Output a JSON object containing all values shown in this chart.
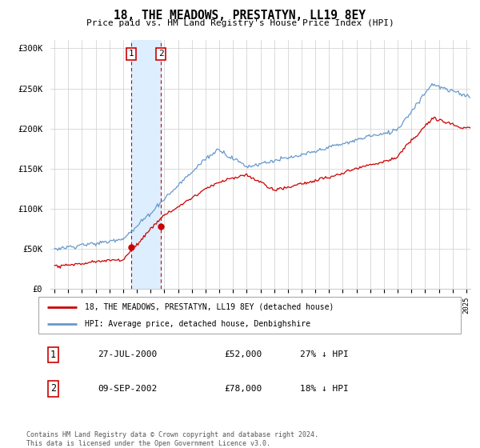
{
  "title": "18, THE MEADOWS, PRESTATYN, LL19 8EY",
  "subtitle": "Price paid vs. HM Land Registry's House Price Index (HPI)",
  "legend_line1": "18, THE MEADOWS, PRESTATYN, LL19 8EY (detached house)",
  "legend_line2": "HPI: Average price, detached house, Denbighshire",
  "transaction1_label": "1",
  "transaction1_date": "27-JUL-2000",
  "transaction1_price": "£52,000",
  "transaction1_hpi": "27% ↓ HPI",
  "transaction2_label": "2",
  "transaction2_date": "09-SEP-2002",
  "transaction2_price": "£78,000",
  "transaction2_hpi": "18% ↓ HPI",
  "footer": "Contains HM Land Registry data © Crown copyright and database right 2024.\nThis data is licensed under the Open Government Licence v3.0.",
  "red_color": "#cc0000",
  "blue_color": "#6699cc",
  "shade_color": "#ddeeff",
  "ylim_min": 0,
  "ylim_max": 310000,
  "yticks": [
    0,
    50000,
    100000,
    150000,
    200000,
    250000,
    300000
  ],
  "ytick_labels": [
    "£0",
    "£50K",
    "£100K",
    "£150K",
    "£200K",
    "£250K",
    "£300K"
  ],
  "transaction1_x": 2000.58,
  "transaction1_y": 52000,
  "transaction2_x": 2002.75,
  "transaction2_y": 78000,
  "xmin": 1994.7,
  "xmax": 2025.3
}
